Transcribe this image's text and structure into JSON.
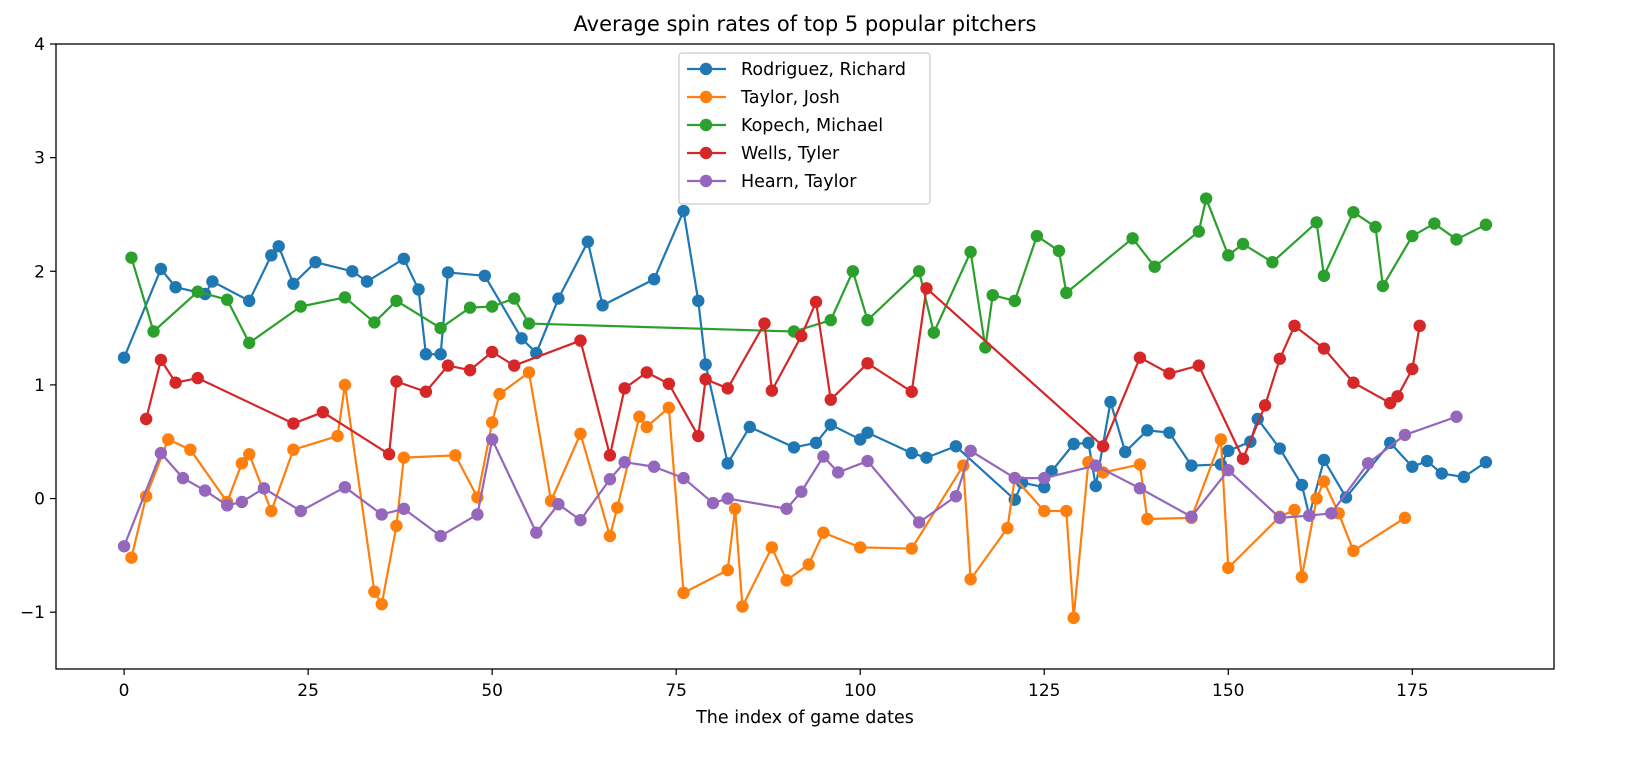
{
  "chart_data": {
    "type": "line",
    "title": "Average spin rates of top 5 popular pitchers",
    "xlabel": "The index of game dates",
    "ylabel": "",
    "xlim": [
      -9.25,
      194.25
    ],
    "ylim": [
      -1.5,
      4
    ],
    "xticks": [
      0,
      25,
      50,
      75,
      100,
      125,
      150,
      175
    ],
    "yticks": [
      -1,
      0,
      1,
      2,
      3,
      4
    ],
    "grid": false,
    "legend": "upper center",
    "marker": "circle",
    "series": [
      {
        "name": "Rodriguez, Richard",
        "color": "#1f77b4",
        "x": [
          0,
          5,
          7,
          11,
          12,
          17,
          20,
          21,
          23,
          26,
          31,
          33,
          38,
          40,
          41,
          43,
          44,
          49,
          54,
          56,
          59,
          63,
          65,
          72,
          76,
          78,
          79,
          82,
          85,
          91,
          94,
          96,
          100,
          101,
          107,
          109,
          113,
          121,
          122,
          125,
          126,
          129,
          131,
          132,
          134,
          136,
          139,
          142,
          145,
          149,
          150,
          153,
          154,
          157,
          160,
          161,
          163,
          166,
          172,
          175,
          177,
          179,
          182,
          185
        ],
        "y": [
          1.24,
          2.02,
          1.86,
          1.8,
          1.91,
          1.74,
          2.14,
          2.22,
          1.89,
          2.08,
          2.0,
          1.91,
          2.11,
          1.84,
          1.27,
          1.27,
          1.99,
          1.96,
          1.41,
          1.28,
          1.76,
          2.26,
          1.7,
          1.93,
          2.53,
          1.74,
          1.18,
          0.31,
          0.63,
          0.45,
          0.49,
          0.65,
          0.52,
          0.58,
          0.4,
          0.36,
          0.46,
          -0.01,
          0.14,
          0.1,
          0.24,
          0.48,
          0.49,
          0.11,
          0.85,
          0.41,
          0.6,
          0.58,
          0.29,
          0.3,
          0.42,
          0.5,
          0.7,
          0.44,
          0.12,
          -0.15,
          0.34,
          0.01,
          0.49,
          0.28,
          0.33,
          0.22,
          0.19,
          0.32
        ]
      },
      {
        "name": "Taylor, Josh",
        "color": "#ff7f0e",
        "x": [
          1,
          3,
          6,
          9,
          14,
          16,
          17,
          20,
          23,
          29,
          30,
          34,
          35,
          37,
          38,
          45,
          48,
          50,
          51,
          55,
          58,
          62,
          66,
          67,
          70,
          71,
          74,
          76,
          82,
          83,
          84,
          88,
          90,
          93,
          95,
          100,
          107,
          114,
          115,
          120,
          121,
          125,
          128,
          129,
          131,
          133,
          138,
          139,
          145,
          149,
          150,
          157,
          159,
          160,
          162,
          163,
          165,
          167,
          174
        ],
        "y": [
          -0.52,
          0.02,
          0.52,
          0.43,
          -0.03,
          0.31,
          0.39,
          -0.11,
          0.43,
          0.55,
          1.0,
          -0.82,
          -0.93,
          -0.24,
          0.36,
          0.38,
          0.01,
          0.67,
          0.92,
          1.11,
          -0.02,
          0.57,
          -0.33,
          -0.08,
          0.72,
          0.63,
          0.8,
          -0.83,
          -0.63,
          -0.09,
          -0.95,
          -0.43,
          -0.72,
          -0.58,
          -0.3,
          -0.43,
          -0.44,
          0.29,
          -0.71,
          -0.26,
          0.18,
          -0.11,
          -0.11,
          -1.05,
          0.32,
          0.23,
          0.3,
          -0.18,
          -0.17,
          0.52,
          -0.61,
          -0.16,
          -0.1,
          -0.69,
          0.0,
          0.15,
          -0.13,
          -0.46,
          -0.17
        ]
      },
      {
        "name": "Kopech, Michael",
        "color": "#2ca02c",
        "x": [
          1,
          4,
          10,
          14,
          17,
          24,
          30,
          34,
          37,
          43,
          47,
          50,
          53,
          55,
          91,
          96,
          99,
          101,
          108,
          110,
          115,
          117,
          118,
          121,
          124,
          127,
          128,
          137,
          140,
          146,
          147,
          150,
          152,
          156,
          162,
          163,
          167,
          170,
          171,
          175,
          178,
          181,
          185
        ],
        "y": [
          2.12,
          1.47,
          1.82,
          1.75,
          1.37,
          1.69,
          1.77,
          1.55,
          1.74,
          1.5,
          1.68,
          1.69,
          1.76,
          1.54,
          1.47,
          1.57,
          2.0,
          1.57,
          2.0,
          1.46,
          2.17,
          1.33,
          1.79,
          1.74,
          2.31,
          2.18,
          1.81,
          2.29,
          2.04,
          2.35,
          2.64,
          2.14,
          2.24,
          2.08,
          2.43,
          1.96,
          2.52,
          2.39,
          1.87,
          2.31,
          2.42,
          2.28,
          2.41
        ]
      },
      {
        "name": "Wells, Tyler",
        "color": "#d62728",
        "x": [
          3,
          5,
          7,
          10,
          23,
          27,
          36,
          37,
          41,
          44,
          47,
          50,
          53,
          62,
          66,
          68,
          71,
          74,
          78,
          79,
          82,
          87,
          88,
          92,
          94,
          96,
          101,
          107,
          109,
          133,
          138,
          142,
          146,
          152,
          155,
          157,
          159,
          163,
          167,
          172,
          173,
          175,
          176
        ],
        "y": [
          0.7,
          1.22,
          1.02,
          1.06,
          0.66,
          0.76,
          0.39,
          1.03,
          0.94,
          1.17,
          1.13,
          1.29,
          1.17,
          1.39,
          0.38,
          0.97,
          1.11,
          1.01,
          0.55,
          1.05,
          0.97,
          1.54,
          0.95,
          1.43,
          1.73,
          0.87,
          1.19,
          0.94,
          1.85,
          0.46,
          1.24,
          1.1,
          1.17,
          0.35,
          0.82,
          1.23,
          1.52,
          1.32,
          1.02,
          0.84,
          0.9,
          1.14,
          1.52
        ]
      },
      {
        "name": "Hearn, Taylor",
        "color": "#9467bd",
        "x": [
          0,
          5,
          8,
          11,
          14,
          16,
          19,
          24,
          30,
          35,
          38,
          43,
          48,
          50,
          56,
          59,
          62,
          66,
          68,
          72,
          76,
          80,
          82,
          90,
          92,
          95,
          97,
          101,
          108,
          113,
          115,
          121,
          125,
          132,
          138,
          145,
          150,
          157,
          161,
          164,
          169,
          174,
          181
        ],
        "y": [
          -0.42,
          0.4,
          0.18,
          0.07,
          -0.06,
          -0.03,
          0.09,
          -0.11,
          0.1,
          -0.14,
          -0.09,
          -0.33,
          -0.14,
          0.52,
          -0.3,
          -0.05,
          -0.19,
          0.17,
          0.32,
          0.28,
          0.18,
          -0.04,
          0.0,
          -0.09,
          0.06,
          0.37,
          0.23,
          0.33,
          -0.21,
          0.02,
          0.42,
          0.18,
          0.18,
          0.29,
          0.09,
          -0.16,
          0.25,
          -0.17,
          -0.15,
          -0.13,
          0.31,
          0.56,
          0.72
        ]
      }
    ]
  }
}
